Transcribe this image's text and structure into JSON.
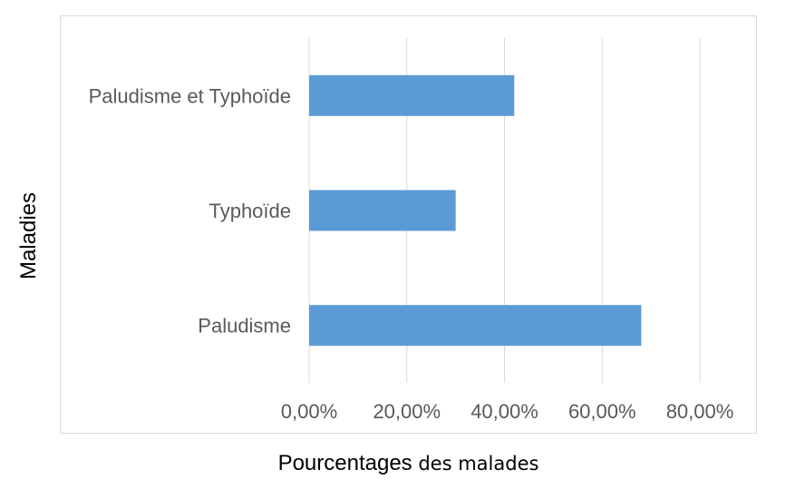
{
  "chart_data": {
    "type": "bar",
    "orientation": "horizontal",
    "categories": [
      "Paludisme et Typhoïde",
      "Typhoïde",
      "Paludisme"
    ],
    "values": [
      0.42,
      0.3,
      0.68
    ],
    "xlim": [
      0,
      0.8
    ],
    "x_ticks": [
      0,
      0.2,
      0.4,
      0.6,
      0.8
    ],
    "x_tick_labels": [
      "0,00%",
      "20,00%",
      "40,00%",
      "60,00%",
      "80,00%"
    ],
    "xlabel_part1": "Pourcentages",
    "xlabel_part2": " des malades",
    "ylabel": "Maladies",
    "bar_color": "#5b9bd5",
    "grid": "vertical",
    "grid_color": "#d9d9d9"
  }
}
